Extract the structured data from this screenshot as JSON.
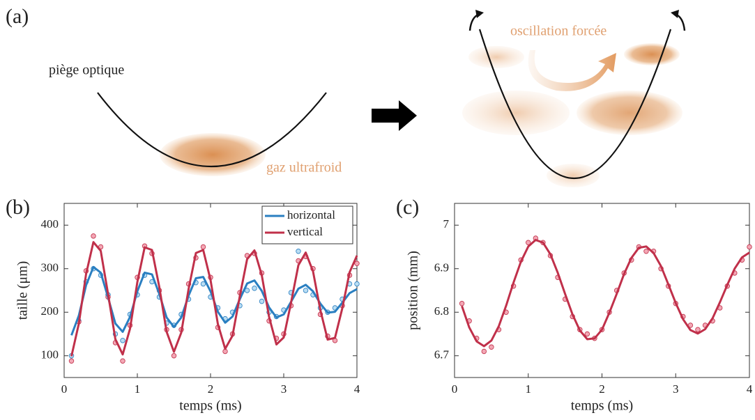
{
  "diagram": {
    "label": "(a)",
    "trap_label": "piège optique",
    "gas_label": "gaz ultrafroid",
    "forced_label": "oscillation forcée"
  },
  "chart_data": [
    {
      "type": "line",
      "panel_label": "(b)",
      "xlabel": "temps (ms)",
      "ylabel": "taille  (μm)",
      "xlim": [
        0,
        4
      ],
      "ylim": [
        50,
        450
      ],
      "xticks": [
        0,
        1,
        2,
        3,
        4
      ],
      "yticks": [
        100,
        200,
        300,
        400
      ],
      "legend": "upper right",
      "grid": false,
      "x": [
        0.1,
        0.2,
        0.3,
        0.4,
        0.5,
        0.6,
        0.7,
        0.8,
        0.9,
        1.0,
        1.1,
        1.2,
        1.3,
        1.4,
        1.5,
        1.6,
        1.7,
        1.8,
        1.9,
        2.0,
        2.1,
        2.2,
        2.3,
        2.4,
        2.5,
        2.6,
        2.7,
        2.8,
        2.9,
        3.0,
        3.1,
        3.2,
        3.3,
        3.4,
        3.5,
        3.6,
        3.7,
        3.8,
        3.9,
        4.0
      ],
      "series": [
        {
          "type": "scatter",
          "color": "#2a7fc1",
          "fill": "#b9ddf3",
          "values": [
            100,
            180,
            270,
            300,
            285,
            240,
            150,
            135,
            195,
            240,
            285,
            270,
            235,
            175,
            170,
            195,
            230,
            268,
            265,
            235,
            210,
            185,
            200,
            215,
            250,
            255,
            225,
            200,
            190,
            205,
            245,
            340,
            250,
            240,
            210,
            200,
            210,
            230,
            265,
            265
          ]
        },
        {
          "type": "scatter",
          "color": "#c0304a",
          "fill": "#f3a7b5",
          "values": [
            88,
            178,
            295,
            375,
            350,
            235,
            130,
            88,
            170,
            280,
            352,
            335,
            250,
            160,
            100,
            160,
            265,
            325,
            350,
            280,
            165,
            110,
            150,
            245,
            330,
            335,
            290,
            180,
            140,
            150,
            215,
            318,
            328,
            300,
            195,
            145,
            135,
            215,
            285,
            312
          ]
        },
        {
          "type": "line",
          "name": "horizontal",
          "color": "#2a7fc1",
          "values": [
            147,
            192,
            262,
            304,
            291,
            234,
            174,
            155,
            189,
            248,
            291,
            287,
            242,
            188,
            166,
            188,
            238,
            278,
            281,
            248,
            201,
            176,
            190,
            230,
            266,
            273,
            249,
            211,
            188,
            195,
            224,
            254,
            263,
            248,
            220,
            199,
            201,
            222,
            244,
            253
          ]
        },
        {
          "type": "line",
          "name": "vertical",
          "color": "#c0304a",
          "values": [
            99,
            173,
            288,
            361,
            341,
            242,
            138,
            103,
            162,
            269,
            349,
            343,
            258,
            155,
            109,
            153,
            253,
            336,
            343,
            274,
            173,
            116,
            146,
            237,
            322,
            342,
            285,
            189,
            126,
            142,
            222,
            308,
            337,
            294,
            205,
            137,
            141,
            209,
            292,
            330
          ]
        }
      ]
    },
    {
      "type": "line",
      "panel_label": "(c)",
      "xlabel": "temps (ms)",
      "ylabel": "position (mm)",
      "xlim": [
        0,
        4
      ],
      "ylim": [
        6.65,
        7.05
      ],
      "xticks": [
        0,
        1,
        2,
        3,
        4
      ],
      "yticks": [
        6.7,
        6.8,
        6.9,
        7
      ],
      "grid": false,
      "x": [
        0.1,
        0.2,
        0.3,
        0.4,
        0.5,
        0.6,
        0.7,
        0.8,
        0.9,
        1.0,
        1.1,
        1.2,
        1.3,
        1.4,
        1.5,
        1.6,
        1.7,
        1.8,
        1.9,
        2.0,
        2.1,
        2.2,
        2.3,
        2.4,
        2.5,
        2.6,
        2.7,
        2.8,
        2.9,
        3.0,
        3.1,
        3.2,
        3.3,
        3.4,
        3.5,
        3.6,
        3.7,
        3.8,
        3.9,
        4.0
      ],
      "series": [
        {
          "type": "scatter",
          "color": "#c0304a",
          "fill": "#f3a7b5",
          "values": [
            6.82,
            6.78,
            6.74,
            6.71,
            6.72,
            6.76,
            6.8,
            6.86,
            6.92,
            6.96,
            6.97,
            6.96,
            6.93,
            6.88,
            6.83,
            6.79,
            6.76,
            6.75,
            6.74,
            6.76,
            6.8,
            6.85,
            6.89,
            6.92,
            6.95,
            6.94,
            6.94,
            6.9,
            6.86,
            6.82,
            6.79,
            6.77,
            6.76,
            6.77,
            6.78,
            6.81,
            6.86,
            6.89,
            6.92,
            6.95
          ]
        },
        {
          "type": "line",
          "color": "#c0304a",
          "values": [
            6.814,
            6.765,
            6.733,
            6.722,
            6.735,
            6.768,
            6.815,
            6.868,
            6.916,
            6.951,
            6.966,
            6.96,
            6.933,
            6.891,
            6.842,
            6.795,
            6.758,
            6.738,
            6.74,
            6.76,
            6.799,
            6.842,
            6.888,
            6.925,
            6.948,
            6.951,
            6.936,
            6.906,
            6.864,
            6.821,
            6.784,
            6.759,
            6.751,
            6.761,
            6.786,
            6.823,
            6.863,
            6.9,
            6.926,
            6.937
          ]
        }
      ]
    }
  ]
}
